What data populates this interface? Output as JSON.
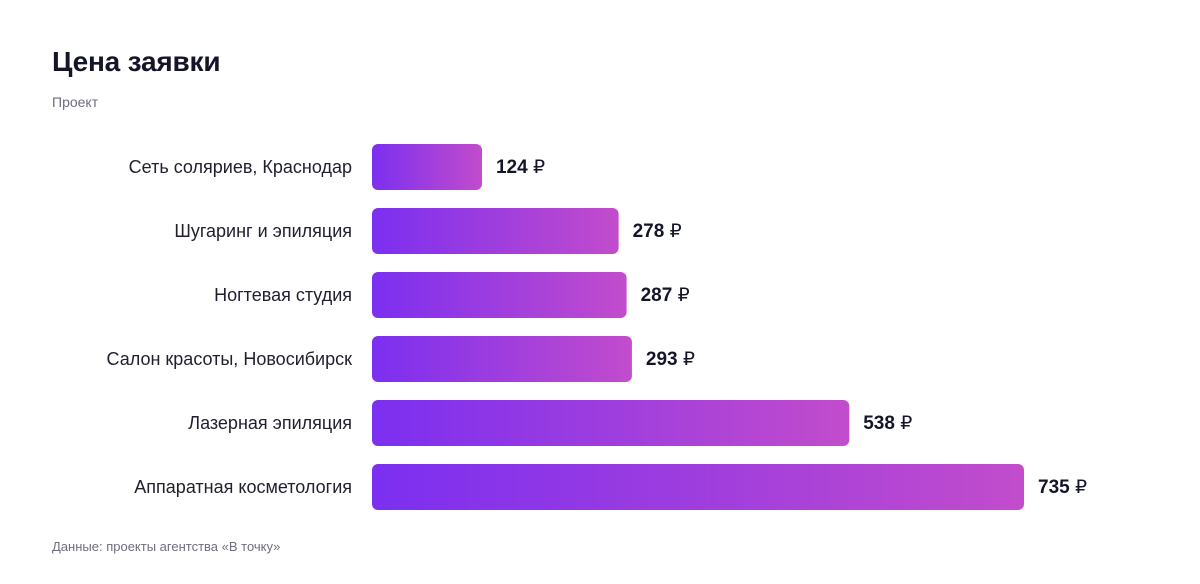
{
  "header": {
    "title": "Цена заявки",
    "subtitle": "Проект"
  },
  "footer": {
    "note": "Данные: проекты агентства «В точку»"
  },
  "colors": {
    "bar_gradient_start": "#7b2ff0",
    "bar_gradient_end": "#c24ccc"
  },
  "chart_data": {
    "type": "bar",
    "orientation": "horizontal",
    "categories": [
      "Сеть соляриев, Краснодар",
      "Шугаринг и эпиляция",
      "Ногтевая студия",
      "Салон красоты, Новосибирск",
      "Лазерная эпиляция",
      "Аппаратная косметология"
    ],
    "values": [
      124,
      278,
      287,
      293,
      538,
      735
    ],
    "value_suffix": "₽",
    "grid": false,
    "legend": "none"
  }
}
